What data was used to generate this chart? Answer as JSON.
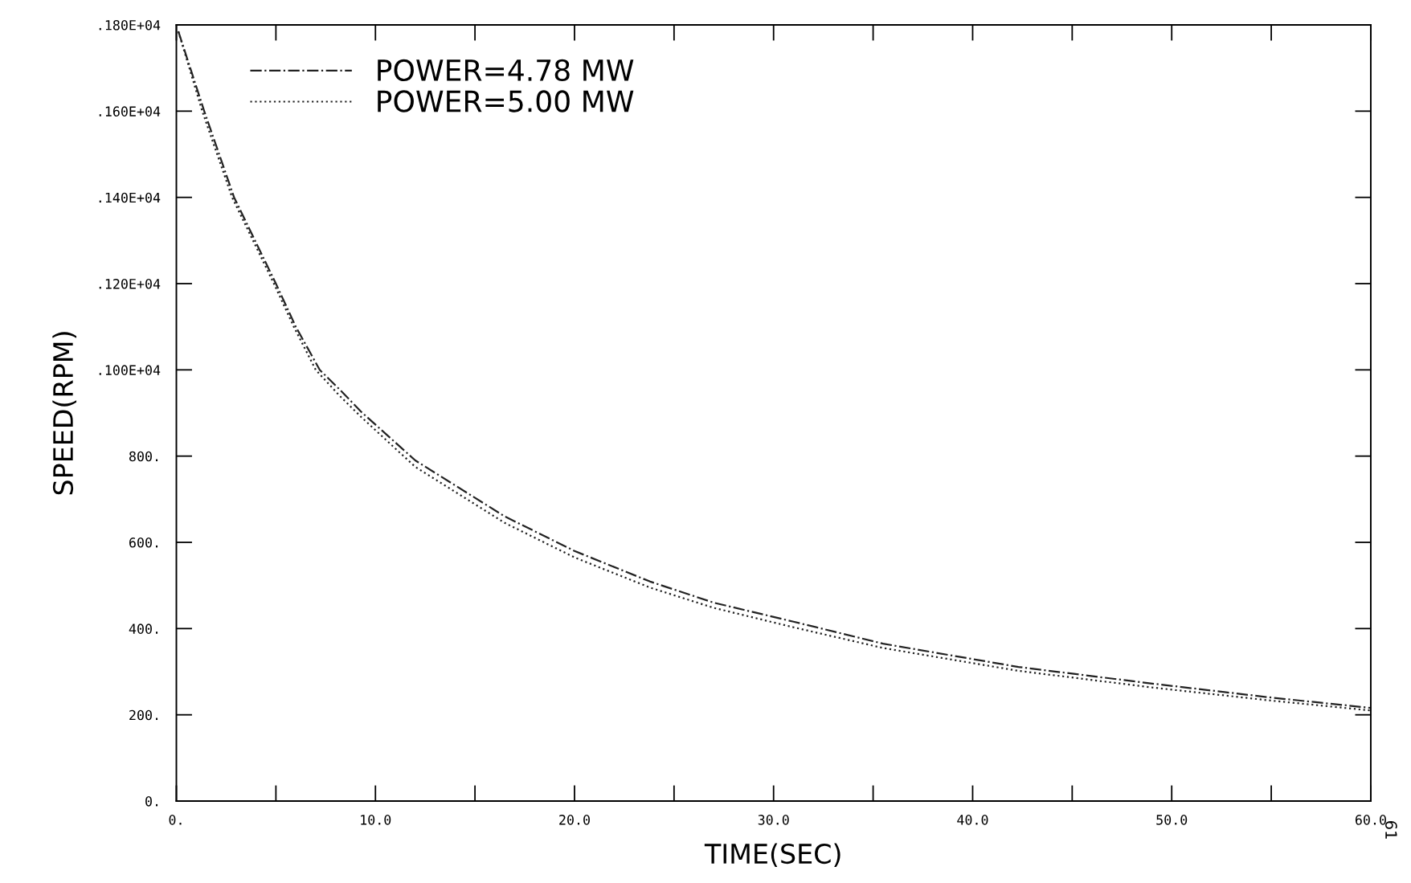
{
  "chart_data": {
    "type": "line",
    "xlabel": "TIME(SEC)",
    "ylabel": "SPEED(RPM)",
    "xlim": [
      0,
      60
    ],
    "ylim": [
      0,
      1800
    ],
    "xticks": [
      {
        "value": 0,
        "label": "0."
      },
      {
        "value": 10,
        "label": "10.0"
      },
      {
        "value": 20,
        "label": "20.0"
      },
      {
        "value": 30,
        "label": "30.0"
      },
      {
        "value": 40,
        "label": "40.0"
      },
      {
        "value": 50,
        "label": "50.0"
      },
      {
        "value": 60,
        "label": "60.0"
      }
    ],
    "yticks": [
      {
        "value": 0,
        "label": "0."
      },
      {
        "value": 200,
        "label": "200."
      },
      {
        "value": 400,
        "label": "400."
      },
      {
        "value": 600,
        "label": "600."
      },
      {
        "value": 800,
        "label": "800."
      },
      {
        "value": 1000,
        "label": ".100E+04"
      },
      {
        "value": 1200,
        "label": ".120E+04"
      },
      {
        "value": 1400,
        "label": ".140E+04"
      },
      {
        "value": 1600,
        "label": ".160E+04"
      },
      {
        "value": 1800,
        "label": ".180E+04"
      }
    ],
    "grid": false,
    "legend": "top left",
    "marker": "none",
    "annotations": [
      "61"
    ],
    "series": [
      {
        "name": "POWER=4.78 MW",
        "color": "#222222",
        "line_style": "dashdot",
        "x": [
          0.1,
          1.4,
          2.9,
          5.0,
          6.0,
          7.2,
          8.3,
          9.3,
          12,
          16.5,
          20,
          23.8,
          27,
          31,
          35.5,
          42.3,
          49.1,
          55,
          60
        ],
        "values": [
          1785,
          1600,
          1400,
          1200,
          1100,
          1000,
          950,
          902,
          790,
          660,
          580,
          509,
          460,
          416,
          365,
          311,
          272,
          240,
          216
        ]
      },
      {
        "name": "POWER=5.00 MW",
        "color": "#222222",
        "line_style": "dotted",
        "x": [
          0.1,
          1.3,
          2.8,
          4.9,
          5.9,
          7.0,
          8.2,
          9.3,
          12,
          16.5,
          20,
          23.8,
          27,
          31,
          35.5,
          42.3,
          49.1,
          55,
          60
        ],
        "values": [
          1785,
          1600,
          1400,
          1200,
          1100,
          1000,
          940,
          890,
          775,
          645,
          565,
          495,
          448,
          403,
          355,
          302,
          263,
          233,
          210
        ]
      }
    ]
  }
}
